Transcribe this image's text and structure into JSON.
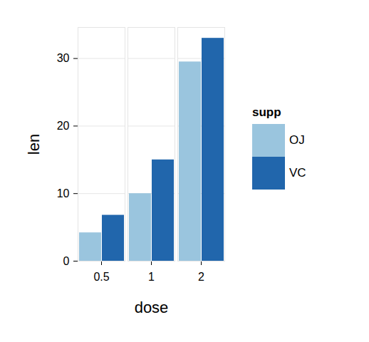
{
  "chart_data": {
    "type": "bar",
    "x_label": "dose",
    "y_label": "len",
    "categories": [
      "0.5",
      "1",
      "2"
    ],
    "series": [
      {
        "name": "OJ",
        "color": "#9ac5de",
        "values": [
          4.2,
          10,
          29.5
        ]
      },
      {
        "name": "VC",
        "color": "#2166ac",
        "values": [
          6.8,
          15,
          33
        ]
      }
    ],
    "ylim": [
      0,
      34.6
    ],
    "yticks": [
      0,
      10,
      20,
      30
    ],
    "grid": true,
    "legend": "right",
    "legend_title": "supp"
  }
}
